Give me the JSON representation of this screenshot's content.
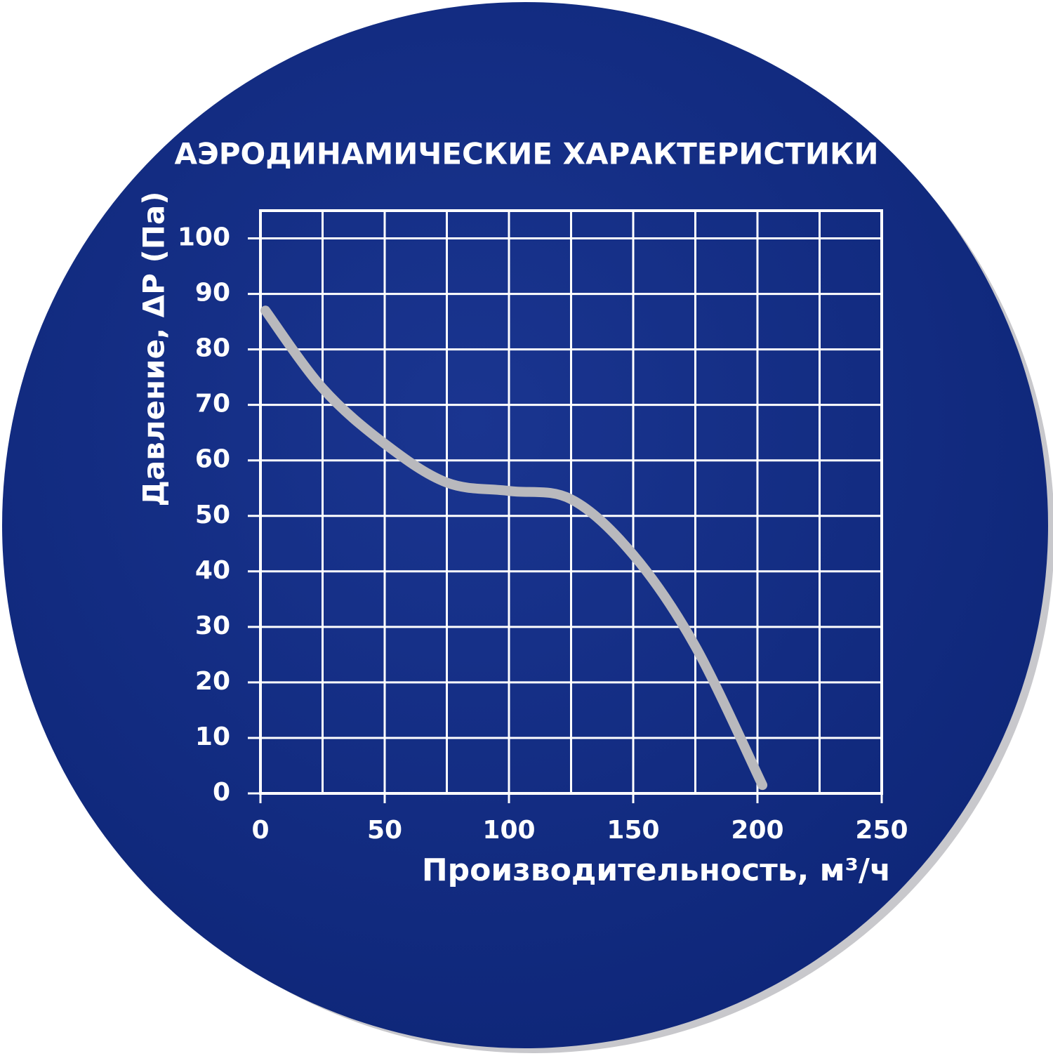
{
  "chart_data": {
    "type": "line",
    "title": "АЭРОДИНАМИЧЕСКИЕ ХАРАКТЕРИСТИКИ",
    "x_label": "Производительность, м³/ч",
    "y_label": "Давление, ΔР (Па)",
    "x": [
      2,
      25,
      50,
      75,
      100,
      125,
      150,
      175,
      202
    ],
    "series": [
      {
        "color": "#b9b9bd",
        "values": [
          87,
          73,
          63,
          56,
          54.5,
          53,
          43,
          26.5,
          1.5
        ]
      }
    ],
    "xlim": [
      0,
      250
    ],
    "ylim": [
      0,
      105
    ],
    "xticks": [
      0,
      50,
      100,
      150,
      200,
      250
    ],
    "yticks": [
      0,
      10,
      20,
      30,
      40,
      50,
      60,
      70,
      80,
      90,
      100
    ],
    "x_grid_step": 25,
    "grid": true
  }
}
